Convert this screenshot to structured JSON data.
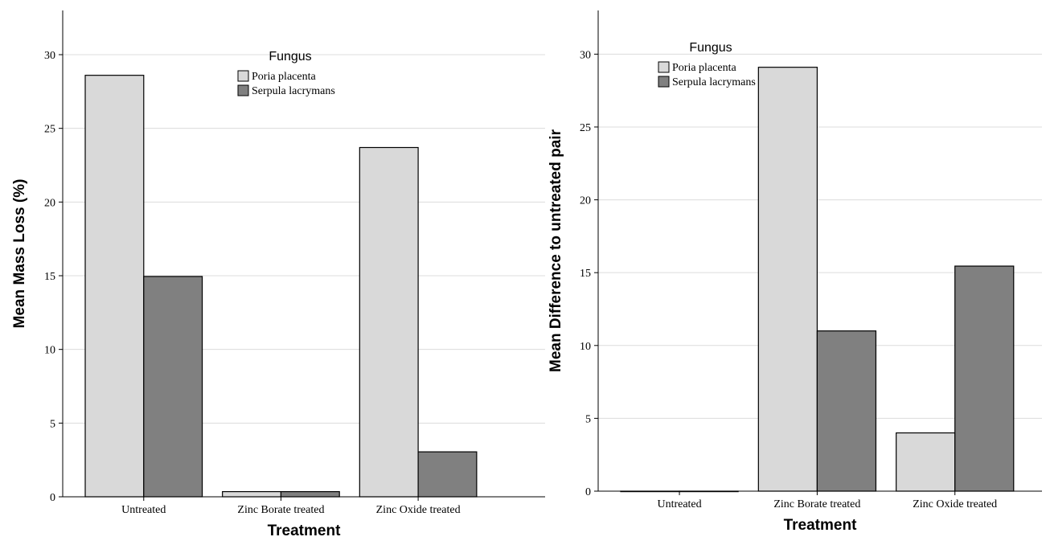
{
  "chart_data": [
    {
      "type": "bar",
      "xlabel": "Treatment",
      "ylabel": "Mean Mass Loss (%)",
      "categories": [
        "Untreated",
        "Zinc Borate treated",
        "Zinc Oxide treated"
      ],
      "ylim": [
        0,
        33
      ],
      "yticks": [
        0,
        5,
        10,
        15,
        20,
        25,
        30
      ],
      "grid": true,
      "legend": {
        "title": "Fungus",
        "placement": "top-center"
      },
      "series": [
        {
          "name": "Poria placenta",
          "color": "#d9d9d9",
          "values": [
            28.6,
            0.35,
            23.7
          ]
        },
        {
          "name": "Serpula lacrymans",
          "color": "#808080",
          "values": [
            14.95,
            0.35,
            3.05
          ]
        }
      ]
    },
    {
      "type": "bar",
      "xlabel": "Treatment",
      "ylabel": "Mean Difference to untreated pair",
      "categories": [
        "Untreated",
        "Zinc Borate treated",
        "Zinc Oxide treated"
      ],
      "ylim": [
        0,
        33
      ],
      "yticks": [
        0,
        5,
        10,
        15,
        20,
        25,
        30
      ],
      "grid": true,
      "legend": {
        "title": "Fungus",
        "placement": "top-left"
      },
      "series": [
        {
          "name": "Poria placenta",
          "color": "#d9d9d9",
          "values": [
            0,
            29.1,
            4.0
          ]
        },
        {
          "name": "Serpula lacrymans",
          "color": "#808080",
          "values": [
            0,
            11.0,
            15.45
          ]
        }
      ]
    }
  ]
}
